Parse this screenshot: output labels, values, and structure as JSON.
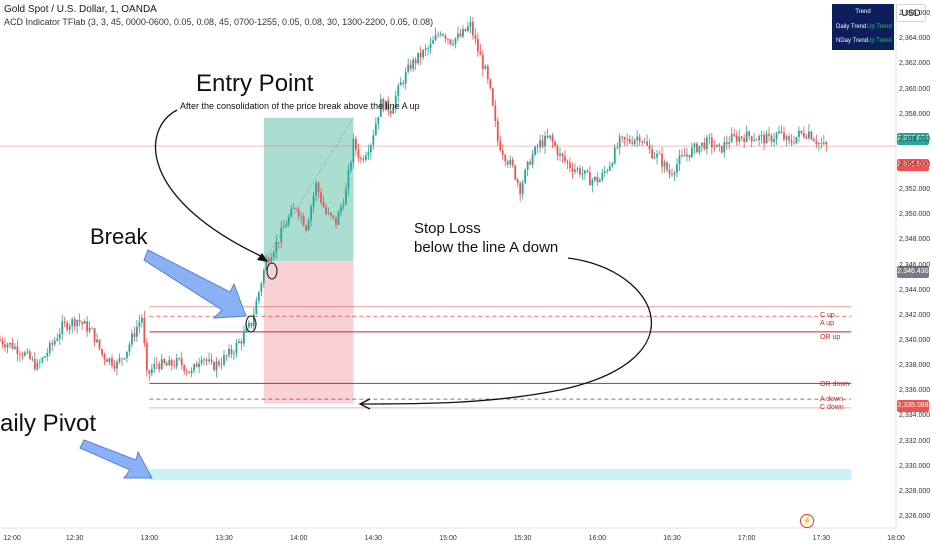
{
  "header": {
    "symbol_title": "Gold Spot / U.S. Dollar, 1, OANDA",
    "indicator_title": "ACD Indicator TFlab (3, 3, 45, 0000-0600, 0.05, 0.08, 45, 0700-1255, 0.05, 0.08, 30, 1300-2200, 0.05, 0.08)"
  },
  "currency_button": "USD",
  "trend_table": {
    "title": "Trend",
    "rows": [
      {
        "label": "Daily Trend",
        "value": "Up Trend"
      },
      {
        "label": "NDay Trend",
        "value": "Up Trend"
      }
    ],
    "colors": {
      "background": "#0c1e5b",
      "value": "#22c55e"
    }
  },
  "annotations": {
    "entry_title": "Entry Point",
    "entry_desc": "After the consolidation of the price break above the line A up",
    "break": "Break",
    "stop_loss_line1": "Stop Loss",
    "stop_loss_line2": "below the line A down",
    "daily_pivot": "aily Pivot"
  },
  "price_labels": {
    "high": "2,357.824",
    "current": "2,355.585",
    "mid": "2,346.430",
    "low": "2,335.088"
  },
  "level_labels": {
    "c_up": "C up",
    "a_up": "A up",
    "or_up": "OR up",
    "or_down": "OR down",
    "a_down": "A down",
    "c_down": "C down"
  },
  "colors": {
    "up": "#26a69a",
    "down": "#ef5350",
    "level": "#c62828",
    "profit_zone": "#8fd1c0",
    "loss_zone": "#f8c4c8",
    "pivot_zone": "#c9f1f7",
    "arrow_fill": "#8ab0f5",
    "arrow_stroke": "#5b7fd9"
  },
  "chart_data": {
    "type": "candlestick",
    "symbol": "Gold Spot / U.S. Dollar",
    "timeframe": "1",
    "y_ticks": [
      "2,366.000",
      "2,364.000",
      "2,362.000",
      "2,360.000",
      "2,358.000",
      "2,356.000",
      "2,354.000",
      "2,352.000",
      "2,350.000",
      "2,348.000",
      "2,346.000",
      "2,344.000",
      "2,342.000",
      "2,340.000",
      "2,338.000",
      "2,336.000",
      "2,334.000",
      "2,332.000",
      "2,330.000",
      "2,328.000",
      "2,326.000"
    ],
    "y_tick_values": [
      2366,
      2364,
      2362,
      2360,
      2358,
      2356,
      2354,
      2352,
      2350,
      2348,
      2346,
      2344,
      2342,
      2340,
      2338,
      2336,
      2334,
      2332,
      2330,
      2328,
      2326
    ],
    "x_ticks": [
      "12:00",
      "12:30",
      "13:00",
      "13:30",
      "14:00",
      "14:30",
      "15:00",
      "15:30",
      "16:00",
      "16:30",
      "17:00",
      "17:30",
      "18:00"
    ],
    "x_tick_values": [
      "12:00",
      "12:30",
      "13:00",
      "13:30",
      "14:00",
      "14:30",
      "15:00",
      "15:30",
      "16:00",
      "16:30",
      "17:00",
      "17:30",
      "18:00"
    ],
    "ylim": [
      2325.2,
      2367.2
    ],
    "xlim": [
      "12:00",
      "18:00"
    ],
    "levels": [
      {
        "name": "C up",
        "value": 2342.8,
        "style": "solid-thin"
      },
      {
        "name": "A up",
        "value": 2342.05,
        "style": "dashed"
      },
      {
        "name": "OR up",
        "value": 2340.8,
        "style": "solid"
      },
      {
        "name": "OR down",
        "value": 2336.7,
        "style": "solid"
      },
      {
        "name": "A down",
        "value": 2335.45,
        "style": "dashed"
      },
      {
        "name": "C down",
        "value": 2334.75,
        "style": "solid-thin"
      }
    ],
    "current_price": 2355.585,
    "position": {
      "entry_time": "13:46",
      "exit_time": "14:22",
      "entry_price": 2346.43,
      "target": 2357.824,
      "stop": 2335.088
    },
    "pivot_zone": {
      "from_time": "13:00",
      "to_time": "17:42",
      "price_low": 2329.0,
      "price_high": 2329.9
    },
    "waypoints": [
      [
        "12:00",
        2340.2
      ],
      [
        "12:06",
        2339.7
      ],
      [
        "12:10",
        2339.2
      ],
      [
        "12:16",
        2338.0
      ],
      [
        "12:22",
        2339.8
      ],
      [
        "12:26",
        2341.2
      ],
      [
        "12:32",
        2341.8
      ],
      [
        "12:38",
        2340.8
      ],
      [
        "12:42",
        2339.0
      ],
      [
        "12:48",
        2338.2
      ],
      [
        "12:52",
        2339.4
      ],
      [
        "12:56",
        2341.2
      ],
      [
        "12:58",
        2342.0
      ],
      [
        "13:00",
        2337.3
      ],
      [
        "13:04",
        2338.3
      ],
      [
        "13:08",
        2338.1
      ],
      [
        "13:13",
        2338.4
      ],
      [
        "13:18",
        2337.5
      ],
      [
        "13:22",
        2339.0
      ],
      [
        "13:26",
        2338.0
      ],
      [
        "13:30",
        2338.5
      ],
      [
        "13:34",
        2339.2
      ],
      [
        "13:38",
        2340.2
      ],
      [
        "13:42",
        2341.5
      ],
      [
        "13:45",
        2344.0
      ],
      [
        "13:48",
        2346.5
      ],
      [
        "13:52",
        2347.8
      ],
      [
        "13:56",
        2349.5
      ],
      [
        "14:00",
        2350.8
      ],
      [
        "14:04",
        2349.2
      ],
      [
        "14:08",
        2352.5
      ],
      [
        "14:12",
        2350.2
      ],
      [
        "14:16",
        2349.5
      ],
      [
        "14:20",
        2352.0
      ],
      [
        "14:23",
        2355.8
      ],
      [
        "14:26",
        2354.5
      ],
      [
        "14:30",
        2355.9
      ],
      [
        "14:34",
        2359.0
      ],
      [
        "14:38",
        2358.5
      ],
      [
        "14:42",
        2360.5
      ],
      [
        "14:46",
        2362.0
      ],
      [
        "14:50",
        2362.8
      ],
      [
        "14:54",
        2363.5
      ],
      [
        "14:58",
        2364.8
      ],
      [
        "15:02",
        2364.0
      ],
      [
        "15:06",
        2364.3
      ],
      [
        "15:10",
        2365.2
      ],
      [
        "15:13",
        2363.2
      ],
      [
        "15:16",
        2361.5
      ],
      [
        "15:18",
        2359.8
      ],
      [
        "15:21",
        2356.0
      ],
      [
        "15:24",
        2354.8
      ],
      [
        "15:27",
        2353.8
      ],
      [
        "15:30",
        2352.2
      ],
      [
        "15:34",
        2354.5
      ],
      [
        "15:38",
        2355.8
      ],
      [
        "15:42",
        2356.2
      ],
      [
        "15:46",
        2354.8
      ],
      [
        "15:50",
        2354.0
      ],
      [
        "15:54",
        2353.6
      ],
      [
        "15:58",
        2352.9
      ],
      [
        "16:02",
        2352.9
      ],
      [
        "16:06",
        2354.2
      ],
      [
        "16:10",
        2355.9
      ],
      [
        "16:14",
        2356.0
      ],
      [
        "16:18",
        2356.4
      ],
      [
        "16:22",
        2355.2
      ],
      [
        "16:26",
        2354.6
      ],
      [
        "16:30",
        2353.4
      ],
      [
        "16:34",
        2354.4
      ],
      [
        "16:38",
        2355.1
      ],
      [
        "16:42",
        2355.6
      ],
      [
        "16:46",
        2355.9
      ],
      [
        "16:50",
        2355.2
      ],
      [
        "16:54",
        2356.1
      ],
      [
        "16:58",
        2356.3
      ],
      [
        "17:02",
        2356.4
      ],
      [
        "17:06",
        2356.2
      ],
      [
        "17:10",
        2356.1
      ],
      [
        "17:14",
        2356.6
      ],
      [
        "17:18",
        2355.8
      ],
      [
        "17:22",
        2356.5
      ],
      [
        "17:26",
        2356.7
      ],
      [
        "17:30",
        2355.8
      ],
      [
        "17:32",
        2355.585
      ]
    ]
  }
}
